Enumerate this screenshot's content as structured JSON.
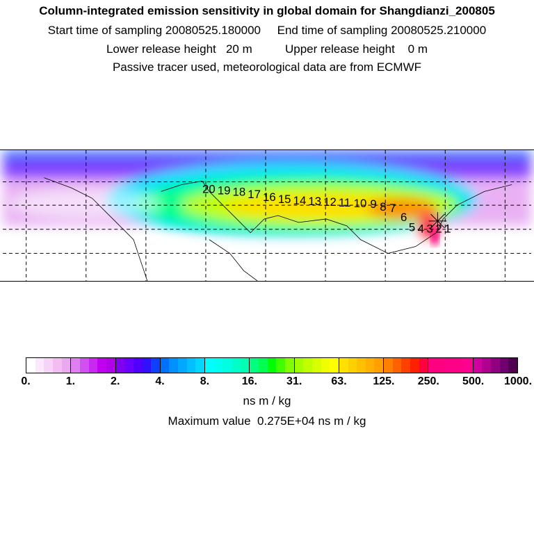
{
  "header": {
    "title": "Column-integrated emission sensitivity in global domain for Shangdianzi_200805",
    "sampling": "Start time of sampling 20080525.180000     End time of sampling 20080525.210000",
    "release": "Lower release height   20 m          Upper release height    0 m",
    "note": "Passive tracer used, meteorological data are from ECMWF"
  },
  "map": {
    "trajectory_labels": [
      "1",
      "2",
      "3",
      "4",
      "5",
      "6",
      "7",
      "8",
      "9",
      "10",
      "11",
      "12",
      "13",
      "14",
      "15",
      "16",
      "17",
      "18",
      "19",
      "20"
    ]
  },
  "colorbar": {
    "ticks": [
      "0.",
      "1.",
      "2.",
      "4.",
      "8.",
      "16.",
      "31.",
      "63.",
      "125.",
      "250.",
      "500.",
      "1000."
    ],
    "unit": "ns m / kg",
    "max_value": "Maximum value  0.275E+04 ns m / kg",
    "segments": [
      [
        "#ffffff",
        "#fce8fc",
        "#f7d4f7",
        "#f2bef2",
        "#eaa8ee"
      ],
      [
        "#e080f0",
        "#d050f0",
        "#c828f0",
        "#c000f0",
        "#b000e8"
      ],
      [
        "#8000f0",
        "#6a00ff",
        "#5000ff",
        "#3010ff",
        "#1040ff"
      ],
      [
        "#0070ff",
        "#0090ff",
        "#00a8ff",
        "#00c0ff",
        "#00d8ff"
      ],
      [
        "#00ffff",
        "#00fff0",
        "#00ffe0",
        "#00ffc8",
        "#00ffb0"
      ],
      [
        "#00ff80",
        "#00ff50",
        "#00ff00",
        "#40ff00",
        "#80ff00"
      ],
      [
        "#a0ff00",
        "#c0ff00",
        "#d8ff00",
        "#f0ff00",
        "#ffff00"
      ],
      [
        "#ffe000",
        "#ffd000",
        "#ffc000",
        "#ffb000",
        "#ffa000"
      ],
      [
        "#ff8000",
        "#ff6000",
        "#ff4000",
        "#ff2000",
        "#ff0040"
      ],
      [
        "#ff0080",
        "#ff0080",
        "#ff0088",
        "#ff0088",
        "#ff0090"
      ],
      [
        "#d000a0",
        "#b00090",
        "#900080",
        "#700070",
        "#500050"
      ]
    ]
  }
}
